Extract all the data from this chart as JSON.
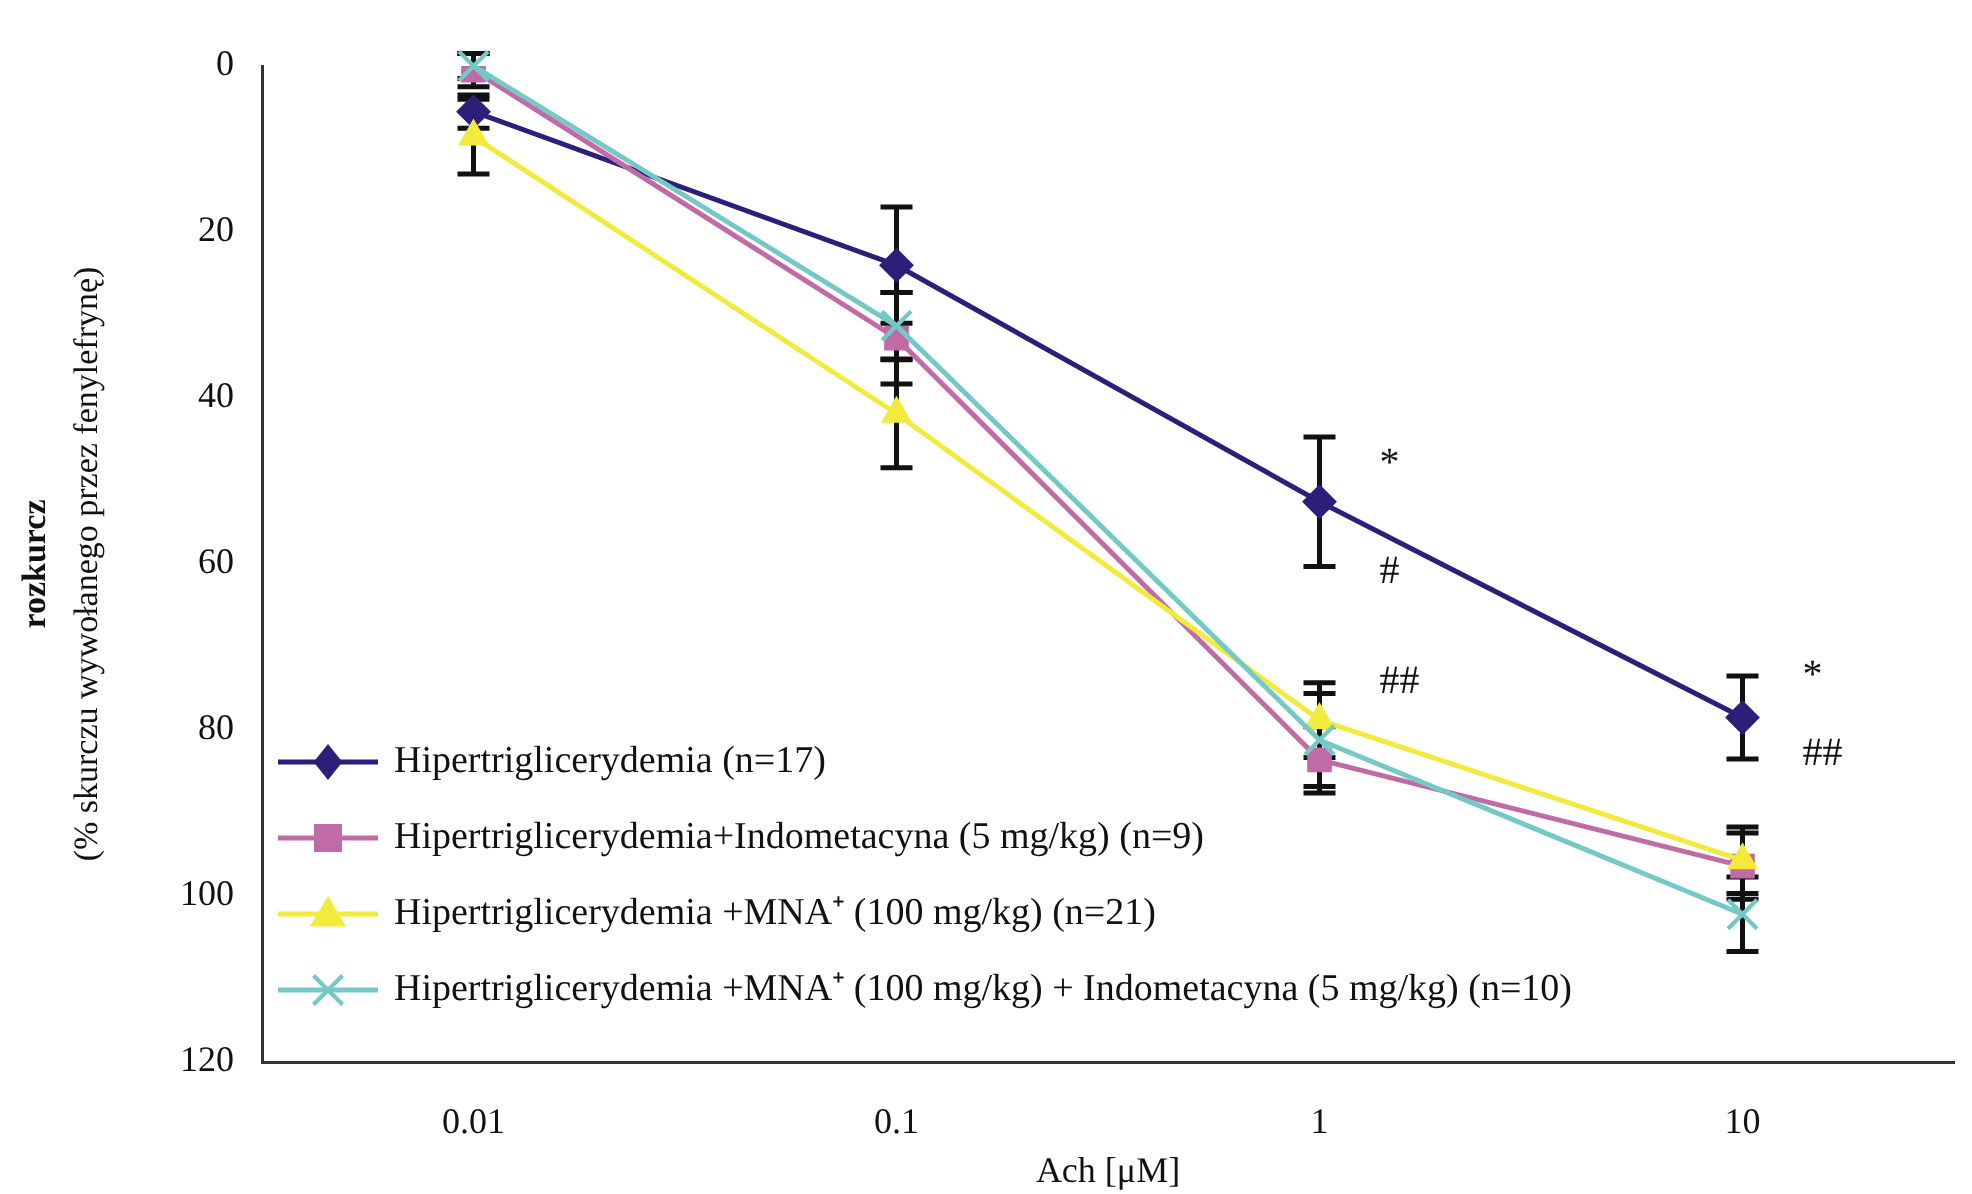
{
  "chart_data": {
    "type": "line",
    "xlabel": "Ach [μM]",
    "ylabel": "rozkurcz\n(% skurczu wywołanego przez fenylefrynę)",
    "categories": [
      "0.01",
      "0.1",
      "1",
      "10"
    ],
    "series": [
      {
        "name": "Hipertriglicerydemia (n=17)",
        "color": "#2b1f7a",
        "marker": "diamond",
        "values": [
          5.5,
          24,
          52.5,
          78.5
        ],
        "errors": [
          2,
          7,
          7.8,
          5
        ]
      },
      {
        "name": "Hipertriglicerydemia+Indometacyna (5 mg/kg) (n=9)",
        "color": "#c06aa6",
        "marker": "square",
        "values": [
          0.5,
          32.8,
          83.6,
          96.4
        ],
        "errors": [
          2,
          5.5,
          4,
          4
        ]
      },
      {
        "name": "Hipertriglicerydemia +MNA⁺ (100 mg/kg) (n=21)",
        "color": "#f2ea3c",
        "marker": "triangle",
        "values": [
          8.5,
          41.9,
          78.8,
          95.7
        ],
        "errors": [
          4.5,
          6.5,
          4.5,
          4
        ]
      },
      {
        "name": "Hipertriglicerydemia +MNA⁺ (100 mg/kg) + Indometacyna (5 mg/kg) (n=10)",
        "color": "#74c9c6",
        "marker": "cross",
        "values": [
          0,
          31.3,
          81.2,
          102.2
        ],
        "errors": [
          1.5,
          4,
          5.6,
          4.5
        ]
      }
    ],
    "ylim": [
      120,
      0
    ],
    "yticks": [
      0,
      20,
      40,
      60,
      80,
      100,
      120
    ],
    "grid": false,
    "legend": "bottom left",
    "line_style": "solid",
    "annotations": [
      {
        "text": "*",
        "x": "1",
        "y": 48
      },
      {
        "text": "#",
        "x": "1",
        "y": 61
      },
      {
        "text": "##",
        "x": "1",
        "y": 74.3
      },
      {
        "text": "*",
        "x": "10",
        "y": 73.5
      },
      {
        "text": "##",
        "x": "10",
        "y": 83
      }
    ]
  }
}
